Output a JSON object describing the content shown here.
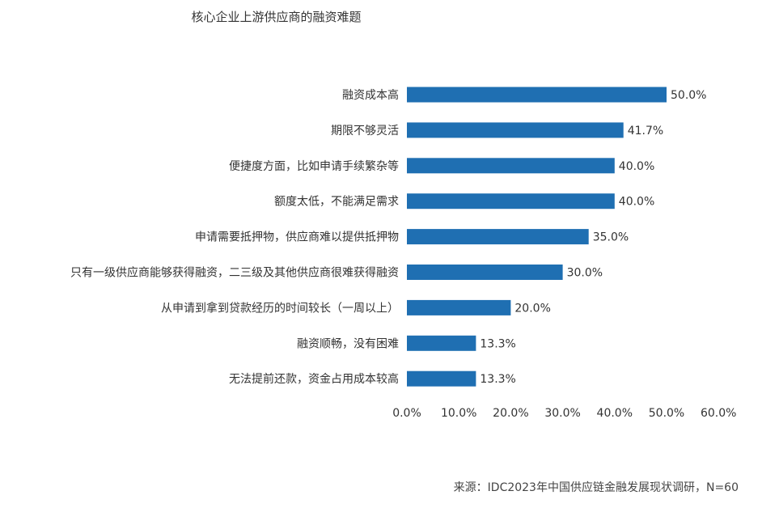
{
  "chart_data": {
    "type": "bar",
    "orientation": "horizontal",
    "title": "核心企业上游供应商的融资难题",
    "categories": [
      "融资成本高",
      "期限不够灵活",
      "便捷度方面，比如申请手续繁杂等",
      "额度太低，不能满足需求",
      "申请需要抵押物，供应商难以提供抵押物",
      "只有一级供应商能够获得融资，二三级及其他供应商很难获得融资",
      "从申请到拿到贷款经历的时间较长（一周以上）",
      "融资顺畅，没有困难",
      "无法提前还款，资金占用成本较高"
    ],
    "values": [
      50.0,
      41.7,
      40.0,
      40.0,
      35.0,
      30.0,
      20.0,
      13.3,
      13.3
    ],
    "value_labels": [
      "50.0%",
      "41.7%",
      "40.0%",
      "40.0%",
      "35.0%",
      "30.0%",
      "20.0%",
      "13.3%",
      "13.3%"
    ],
    "xlim": [
      0,
      60
    ],
    "xticks": [
      "0.0%",
      "10.0%",
      "20.0%",
      "30.0%",
      "40.0%",
      "50.0%",
      "60.0%"
    ],
    "grid": false,
    "legend": false,
    "bar_color": "#1F6FB2"
  },
  "source": "来源：IDC2023年中国供应链金融发展现状调研，N=60"
}
